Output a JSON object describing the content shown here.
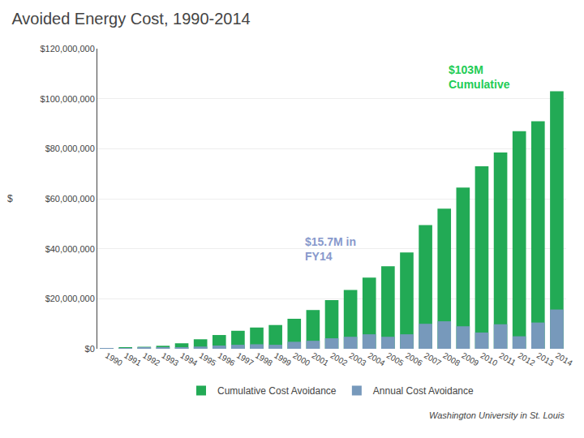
{
  "chart_data": {
    "type": "bar",
    "title": "Avoided Energy Cost, 1990-2014",
    "categories": [
      "1990",
      "1991",
      "1992",
      "1993",
      "1994",
      "1995",
      "1996",
      "1997",
      "1998",
      "1999",
      "2000",
      "2001",
      "2002",
      "2003",
      "2004",
      "2005",
      "2006",
      "2007",
      "2008",
      "2009",
      "2010",
      "2011",
      "2012",
      "2013",
      "2014"
    ],
    "series": [
      {
        "name": "Cumulative Cost Avoidance",
        "color": "#22aa55",
        "values": [
          300000,
          500000,
          800000,
          1200000,
          2200000,
          3800000,
          5500000,
          7200000,
          8500000,
          9500000,
          12000000,
          15500000,
          19500000,
          23500000,
          28500000,
          33000000,
          38500000,
          49500000,
          56000000,
          64500000,
          73000000,
          78500000,
          87000000,
          91000000,
          103000000
        ]
      },
      {
        "name": "Annual Cost Avoidance",
        "color": "#7799bb",
        "values": [
          300000,
          250000,
          350000,
          400000,
          600000,
          900000,
          1300000,
          1600000,
          1800000,
          1600000,
          2800000,
          3200000,
          4200000,
          4800000,
          5800000,
          4800000,
          5800000,
          10000000,
          11000000,
          9000000,
          6500000,
          9800000,
          5000000,
          10500000,
          15700000
        ]
      }
    ],
    "ylim": [
      0,
      120000000
    ],
    "yticks": [
      {
        "value": 0,
        "label": "$0"
      },
      {
        "value": 20000000,
        "label": "$20,000,000"
      },
      {
        "value": 40000000,
        "label": "$40,000,000"
      },
      {
        "value": 60000000,
        "label": "$60,000,000"
      },
      {
        "value": 80000000,
        "label": "$80,000,000"
      },
      {
        "value": 100000000,
        "label": "$100,000,000"
      },
      {
        "value": 120000000,
        "label": "$120,000,000"
      }
    ],
    "grid": true,
    "legend": "bottom",
    "annotations": [
      {
        "text": "$103M\nCumulative",
        "color": "#22cc55"
      },
      {
        "text": "$15.7M in\nFY14",
        "color": "#8899cc"
      },
      {
        "text": "$"
      },
      {
        "text": "Washington University in St. Louis"
      }
    ]
  }
}
